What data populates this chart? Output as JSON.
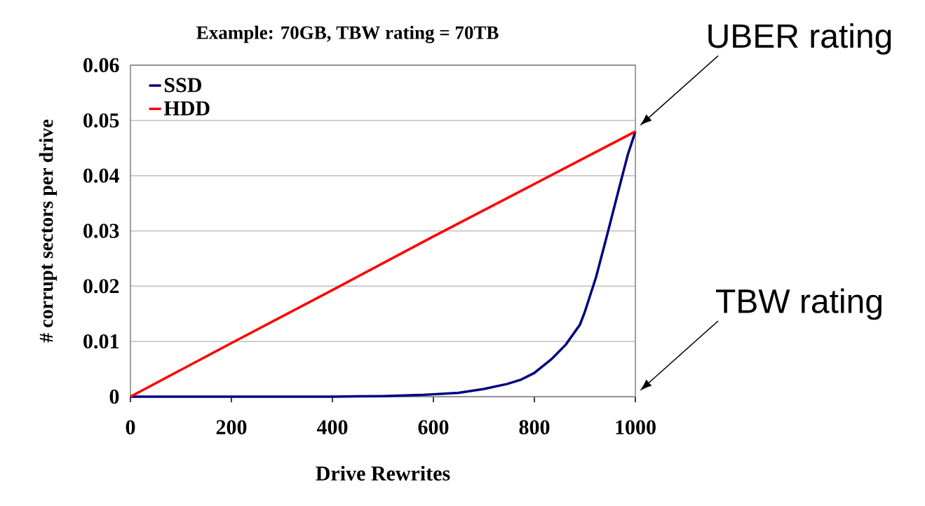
{
  "chart_data": {
    "type": "line",
    "title": "Example: 70GB, TBW rating = 70TB",
    "xlabel": "Drive Rewrites",
    "ylabel": "# corrupt sectors per drive",
    "xlim": [
      0,
      1000
    ],
    "ylim": [
      0,
      0.06
    ],
    "xticks": [
      0,
      200,
      400,
      600,
      800,
      1000
    ],
    "yticks": [
      0,
      0.01,
      0.02,
      0.03,
      0.04,
      0.05,
      0.06
    ],
    "grid": "y",
    "legend": "top left",
    "marker": "none",
    "line_style": "solid",
    "series": [
      {
        "name": "SSD",
        "color": "#000080",
        "x": [
          0,
          100,
          200,
          300,
          400,
          500,
          575,
          650,
          700,
          746,
          774,
          800,
          834,
          862,
          890,
          899,
          922,
          945,
          973,
          985,
          1000
        ],
        "values": [
          0,
          0,
          0,
          0,
          0,
          0.0001,
          0.0003,
          0.0007,
          0.0014,
          0.0023,
          0.0031,
          0.0043,
          0.0068,
          0.0094,
          0.013,
          0.0151,
          0.0216,
          0.0296,
          0.0396,
          0.0438,
          0.048
        ]
      },
      {
        "name": "HDD",
        "color": "#ff0000",
        "x": [
          0,
          200,
          400,
          600,
          800,
          1000
        ],
        "values": [
          0,
          0.0097,
          0.0193,
          0.029,
          0.0385,
          0.048
        ]
      }
    ],
    "annotations": [
      "UBER rating",
      "TBW rating"
    ]
  }
}
